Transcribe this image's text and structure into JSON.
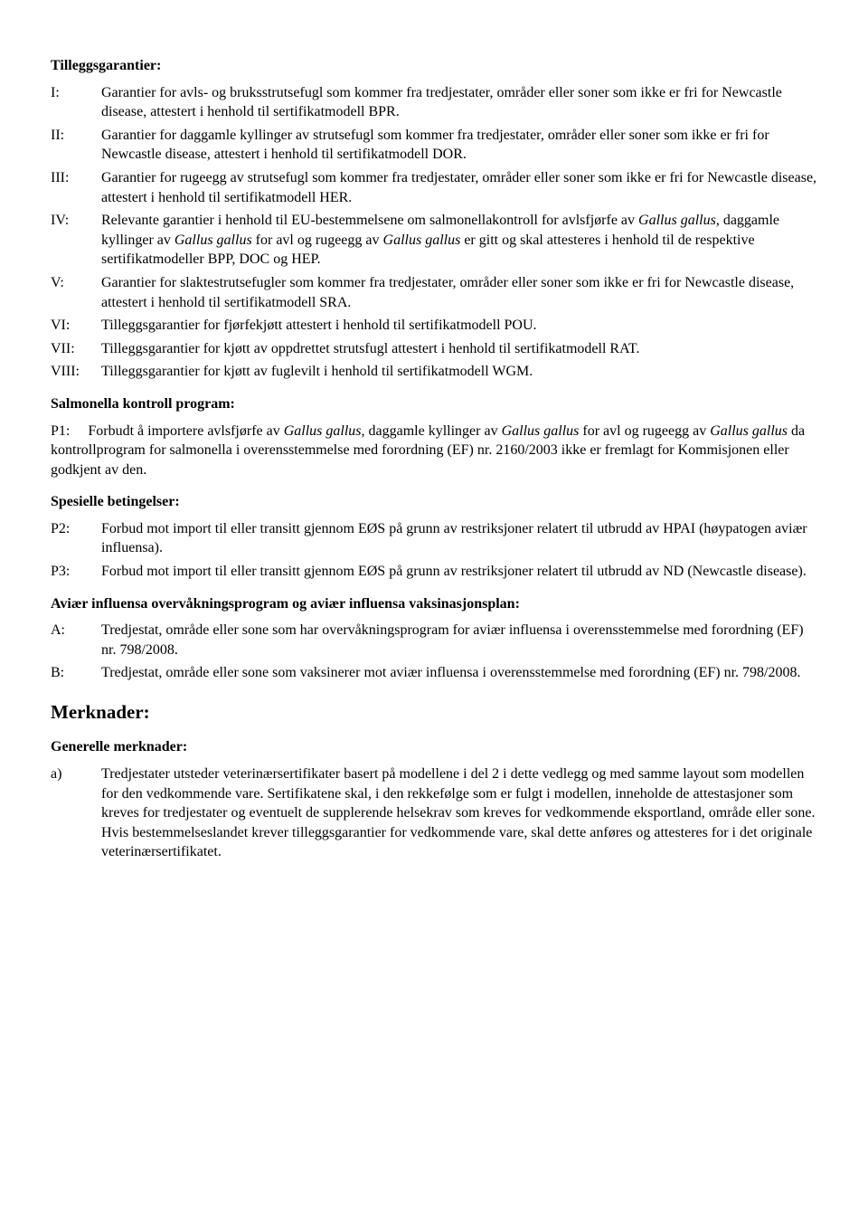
{
  "section1": {
    "title": "Tilleggsgarantier:",
    "items": [
      {
        "label": "I:",
        "text_a": "Garantier for avls- og bruksstrutsefugl som kommer fra tredjestater, områder eller soner som ikke er fri for Newcastle disease, attestert i henhold til sertifikatmodell BPR."
      },
      {
        "label": "II:",
        "text_a": "Garantier for daggamle kyllinger av strutsefugl som kommer fra tredjestater, områder eller soner som ikke er fri for Newcastle disease, attestert i henhold til sertifikatmodell DOR."
      },
      {
        "label": "III:",
        "text_a": "Garantier for rugeegg av strutsefugl som kommer fra tredjestater, områder eller soner som ikke er fri for Newcastle disease, attestert i henhold til sertifikatmodell HER."
      },
      {
        "label": "IV:",
        "text_a": "Relevante garantier i henhold til EU-bestemmelsene om salmonellakontroll for avlsfjørfe av ",
        "italic1": "Gallus gallus",
        "text_b": ", daggamle kyllinger av ",
        "italic2": "Gallus gallus",
        "text_c": " for avl og rugeegg av ",
        "italic3": "Gallus gallus",
        "text_d": " er gitt og skal attesteres i henhold til de respektive sertifikatmodeller BPP, DOC og HEP."
      },
      {
        "label": "V:",
        "text_a": "Garantier for slaktestrutsefugler som kommer fra tredjestater, områder eller soner som ikke er fri for Newcastle disease, attestert i henhold til sertifikatmodell SRA."
      },
      {
        "label": "VI:",
        "text_a": "Tilleggsgarantier for fjørfekjøtt attestert i henhold til sertifikatmodell POU."
      },
      {
        "label": "VII:",
        "text_a": "Tilleggsgarantier for kjøtt av oppdrettet strutsfugl attestert i henhold til sertifikatmodell RAT."
      },
      {
        "label": "VIII:",
        "text_a": "Tilleggsgarantier for kjøtt av fuglevilt i henhold til sertifikatmodell WGM."
      }
    ]
  },
  "section2": {
    "title": "Salmonella kontroll program:",
    "p1_label": "P1:",
    "p1_a": "Forbudt å importere avlsfjørfe av ",
    "p1_i1": "Gallus gallus",
    "p1_b": ", daggamle kyllinger av ",
    "p1_i2": "Gallus gallus",
    "p1_c": " for avl og rugeegg av ",
    "p1_i3": "Gallus gallus",
    "p1_d": " da kontrollprogram for salmonella i overensstemmelse med forordning (EF) nr. 2160/2003 ikke er fremlagt for Kommisjonen eller godkjent av den."
  },
  "section3": {
    "title": "Spesielle betingelser:",
    "items": [
      {
        "label": "P2:",
        "text_a": "Forbud mot import til eller transitt gjennom EØS på grunn av restriksjoner relatert til utbrudd av HPAI (høypatogen aviær influensa)."
      },
      {
        "label": "P3:",
        "text_a": "Forbud mot import til eller transitt gjennom EØS på grunn av restriksjoner relatert til utbrudd av ND (Newcastle disease)."
      }
    ]
  },
  "section4": {
    "title": "Aviær influensa overvåkningsprogram og aviær influensa vaksinasjonsplan:",
    "items": [
      {
        "label": "A:",
        "text_a": "Tredjestat, område eller sone som har overvåkningsprogram for aviær influensa i overensstemmelse med forordning (EF) nr. 798/2008."
      },
      {
        "label": "B:",
        "text_a": "Tredjestat, område eller sone som vaksinerer mot aviær influensa i overensstemmelse med forordning (EF) nr. 798/2008."
      }
    ]
  },
  "section5": {
    "title_large": "Merknader:",
    "subtitle": "Generelle merknader:",
    "items": [
      {
        "label": "a)",
        "text_a": "Tredjestater utsteder veterinærsertifikater basert på modellene i del 2 i dette vedlegg og med samme layout som modellen for den vedkommende vare. Sertifikatene skal, i den rekkefølge som er fulgt i modellen, inneholde de attestasjoner som kreves for tredjestater og eventuelt de supplerende helsekrav som kreves for vedkommende eksportland, område eller sone.",
        "text_b": "Hvis bestemmelseslandet krever tilleggsgarantier for vedkommende vare, skal dette anføres og attesteres for i det originale veterinærsertifikatet."
      }
    ]
  }
}
